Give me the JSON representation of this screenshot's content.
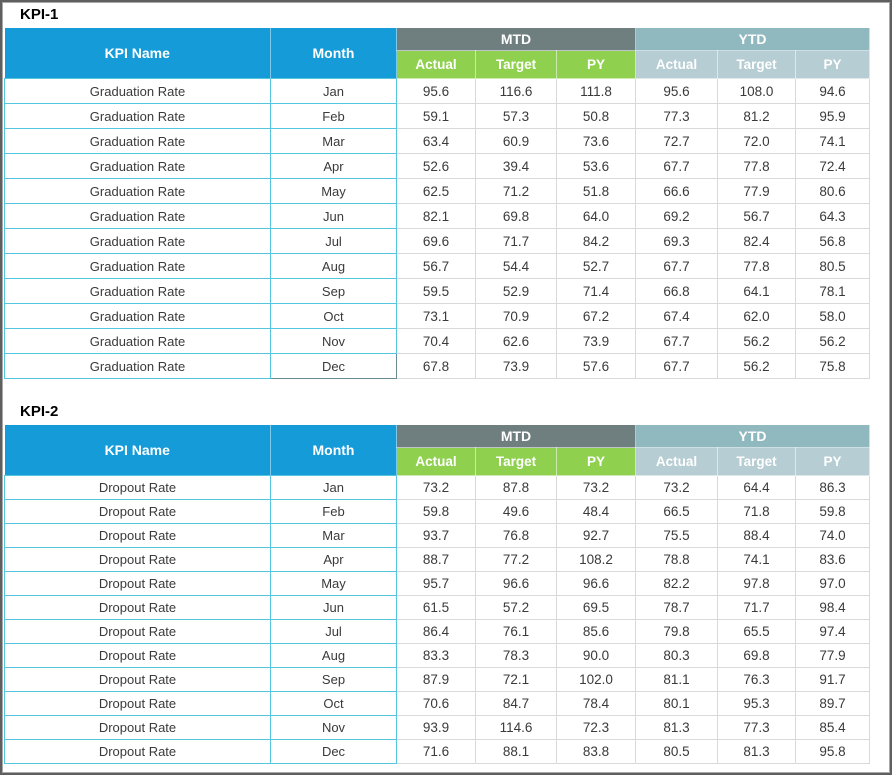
{
  "colors": {
    "header_blue": "#159BD8",
    "mtd_band": "#6F7F80",
    "mtd_sub": "#8FD14F",
    "ytd_band": "#90B9BF",
    "ytd_sub": "#B6CDD3",
    "border_cyan": "#56C5DE",
    "border_gray": "#D9D9D9",
    "frame_gray": "#5F5F5F",
    "text_dark": "#3A3A3A"
  },
  "tables": [
    {
      "label": "KPI-1",
      "headers": {
        "kpi_name": "KPI Name",
        "month": "Month",
        "mtd": "MTD",
        "ytd": "YTD"
      },
      "sub_headers": [
        "Actual",
        "Target",
        "PY"
      ],
      "selected_cell": "Dec",
      "rows": [
        {
          "kpi": "Graduation Rate",
          "month": "Jan",
          "values": [
            "95.6",
            "116.6",
            "111.8",
            "95.6",
            "108.0",
            "94.6"
          ]
        },
        {
          "kpi": "Graduation Rate",
          "month": "Feb",
          "values": [
            "59.1",
            "57.3",
            "50.8",
            "77.3",
            "81.2",
            "95.9"
          ]
        },
        {
          "kpi": "Graduation Rate",
          "month": "Mar",
          "values": [
            "63.4",
            "60.9",
            "73.6",
            "72.7",
            "72.0",
            "74.1"
          ]
        },
        {
          "kpi": "Graduation Rate",
          "month": "Apr",
          "values": [
            "52.6",
            "39.4",
            "53.6",
            "67.7",
            "77.8",
            "72.4"
          ]
        },
        {
          "kpi": "Graduation Rate",
          "month": "May",
          "values": [
            "62.5",
            "71.2",
            "51.8",
            "66.6",
            "77.9",
            "80.6"
          ]
        },
        {
          "kpi": "Graduation Rate",
          "month": "Jun",
          "values": [
            "82.1",
            "69.8",
            "64.0",
            "69.2",
            "56.7",
            "64.3"
          ]
        },
        {
          "kpi": "Graduation Rate",
          "month": "Jul",
          "values": [
            "69.6",
            "71.7",
            "84.2",
            "69.3",
            "82.4",
            "56.8"
          ]
        },
        {
          "kpi": "Graduation Rate",
          "month": "Aug",
          "values": [
            "56.7",
            "54.4",
            "52.7",
            "67.7",
            "77.8",
            "80.5"
          ]
        },
        {
          "kpi": "Graduation Rate",
          "month": "Sep",
          "values": [
            "59.5",
            "52.9",
            "71.4",
            "66.8",
            "64.1",
            "78.1"
          ]
        },
        {
          "kpi": "Graduation Rate",
          "month": "Oct",
          "values": [
            "73.1",
            "70.9",
            "67.2",
            "67.4",
            "62.0",
            "58.0"
          ]
        },
        {
          "kpi": "Graduation Rate",
          "month": "Nov",
          "values": [
            "70.4",
            "62.6",
            "73.9",
            "67.7",
            "56.2",
            "56.2"
          ]
        },
        {
          "kpi": "Graduation Rate",
          "month": "Dec",
          "values": [
            "67.8",
            "73.9",
            "57.6",
            "67.7",
            "56.2",
            "75.8"
          ]
        }
      ]
    },
    {
      "label": "KPI-2",
      "headers": {
        "kpi_name": "KPI Name",
        "month": "Month",
        "mtd": "MTD",
        "ytd": "YTD"
      },
      "sub_headers": [
        "Actual",
        "Target",
        "PY"
      ],
      "selected_cell": null,
      "rows": [
        {
          "kpi": "Dropout Rate",
          "month": "Jan",
          "values": [
            "73.2",
            "87.8",
            "73.2",
            "73.2",
            "64.4",
            "86.3"
          ]
        },
        {
          "kpi": "Dropout Rate",
          "month": "Feb",
          "values": [
            "59.8",
            "49.6",
            "48.4",
            "66.5",
            "71.8",
            "59.8"
          ]
        },
        {
          "kpi": "Dropout Rate",
          "month": "Mar",
          "values": [
            "93.7",
            "76.8",
            "92.7",
            "75.5",
            "88.4",
            "74.0"
          ]
        },
        {
          "kpi": "Dropout Rate",
          "month": "Apr",
          "values": [
            "88.7",
            "77.2",
            "108.2",
            "78.8",
            "74.1",
            "83.6"
          ]
        },
        {
          "kpi": "Dropout Rate",
          "month": "May",
          "values": [
            "95.7",
            "96.6",
            "96.6",
            "82.2",
            "97.8",
            "97.0"
          ]
        },
        {
          "kpi": "Dropout Rate",
          "month": "Jun",
          "values": [
            "61.5",
            "57.2",
            "69.5",
            "78.7",
            "71.7",
            "98.4"
          ]
        },
        {
          "kpi": "Dropout Rate",
          "month": "Jul",
          "values": [
            "86.4",
            "76.1",
            "85.6",
            "79.8",
            "65.5",
            "97.4"
          ]
        },
        {
          "kpi": "Dropout Rate",
          "month": "Aug",
          "values": [
            "83.3",
            "78.3",
            "90.0",
            "80.3",
            "69.8",
            "77.9"
          ]
        },
        {
          "kpi": "Dropout Rate",
          "month": "Sep",
          "values": [
            "87.9",
            "72.1",
            "102.0",
            "81.1",
            "76.3",
            "91.7"
          ]
        },
        {
          "kpi": "Dropout Rate",
          "month": "Oct",
          "values": [
            "70.6",
            "84.7",
            "78.4",
            "80.1",
            "95.3",
            "89.7"
          ]
        },
        {
          "kpi": "Dropout Rate",
          "month": "Nov",
          "values": [
            "93.9",
            "114.6",
            "72.3",
            "81.3",
            "77.3",
            "85.4"
          ]
        },
        {
          "kpi": "Dropout Rate",
          "month": "Dec",
          "values": [
            "71.6",
            "88.1",
            "83.8",
            "80.5",
            "81.3",
            "95.8"
          ]
        }
      ]
    }
  ]
}
